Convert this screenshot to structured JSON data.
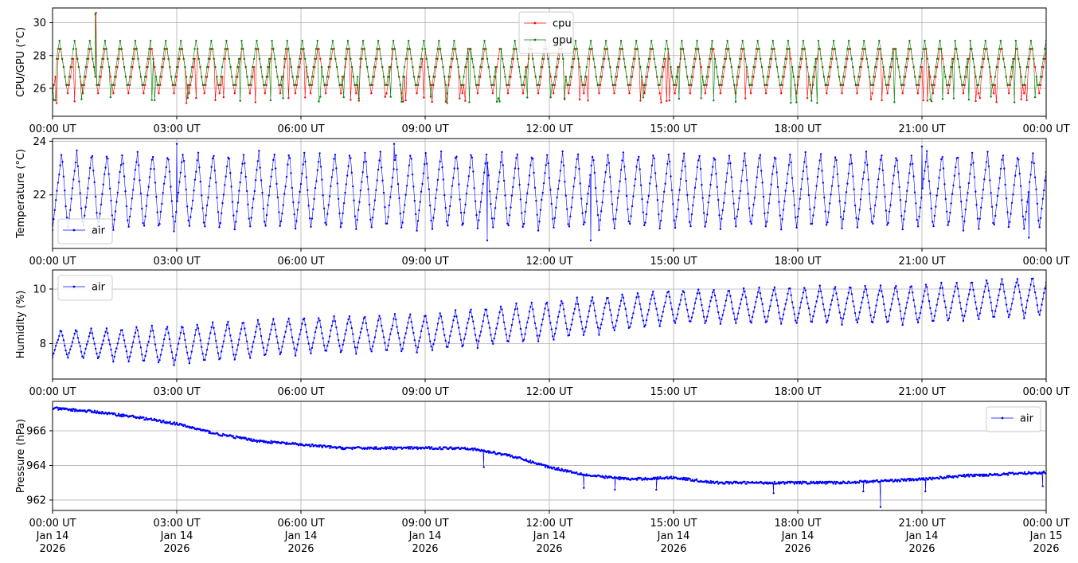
{
  "chart_data": [
    {
      "type": "line",
      "ylabel": "CPU/GPU (°C)",
      "ylim": [
        24.3,
        30.9
      ],
      "yticks": [
        26,
        28,
        30
      ],
      "xlim": [
        "2026-01-14T00:00Z",
        "2026-01-15T00:00Z"
      ],
      "x_tick_labels": [
        "00:00 UT",
        "03:00 UT",
        "06:00 UT",
        "09:00 UT",
        "12:00 UT",
        "15:00 UT",
        "18:00 UT",
        "21:00 UT",
        "00:00 UT"
      ],
      "grid": true,
      "legend": "top-center",
      "series": [
        {
          "name": "cpu",
          "color": "#ff0000",
          "pattern": "oscillating between ~25.7 and ~28.9 °C with ~22 min period",
          "min": 24.6,
          "max": 30.6
        },
        {
          "name": "gpu",
          "color": "#008000",
          "pattern": "oscillating between ~25.7 and ~28.9 °C with ~22 min period",
          "min": 24.6,
          "max": 30.5
        }
      ]
    },
    {
      "type": "line",
      "ylabel": "Temperature (°C)",
      "ylim": [
        20.0,
        24.1
      ],
      "yticks": [
        22,
        24
      ],
      "xlim": [
        "2026-01-14T00:00Z",
        "2026-01-15T00:00Z"
      ],
      "x_tick_labels": [
        "00:00 UT",
        "03:00 UT",
        "06:00 UT",
        "09:00 UT",
        "12:00 UT",
        "15:00 UT",
        "18:00 UT",
        "21:00 UT",
        "00:00 UT"
      ],
      "grid": true,
      "legend": "bottom-left",
      "series": [
        {
          "name": "air",
          "color": "#0000ff",
          "pattern": "sawtooth oscillation about 22 °C, range ~20.6 to ~23.6 °C, ~22 min period",
          "peaks": [
            [
              "03:00",
              23.9
            ],
            [
              "08:15",
              23.9
            ],
            [
              "21:00",
              23.8
            ]
          ],
          "troughs": [
            [
              "10:30",
              20.3
            ],
            [
              "13:00",
              20.3
            ],
            [
              "23:35",
              20.4
            ]
          ]
        }
      ]
    },
    {
      "type": "line",
      "ylabel": "Humidity (%)",
      "ylim": [
        6.7,
        10.7
      ],
      "yticks": [
        8,
        10
      ],
      "xlim": [
        "2026-01-14T00:00Z",
        "2026-01-15T00:00Z"
      ],
      "x_tick_labels": [
        "00:00 UT",
        "03:00 UT",
        "06:00 UT",
        "09:00 UT",
        "12:00 UT",
        "15:00 UT",
        "18:00 UT",
        "21:00 UT",
        "00:00 UT"
      ],
      "grid": true,
      "legend": "top-left",
      "series": [
        {
          "name": "air",
          "color": "#0000ff",
          "pattern": "oscillation with rising baseline",
          "envelope": [
            [
              "00:00",
              7.5,
              8.5
            ],
            [
              "03:00",
              7.2,
              8.7
            ],
            [
              "06:00",
              7.6,
              9.0
            ],
            [
              "09:00",
              7.7,
              9.1
            ],
            [
              "12:00",
              8.1,
              9.6
            ],
            [
              "15:00",
              8.7,
              10.0
            ],
            [
              "18:00",
              8.7,
              10.1
            ],
            [
              "21:00",
              8.7,
              10.2
            ],
            [
              "24:00",
              9.0,
              10.5
            ]
          ]
        }
      ]
    },
    {
      "type": "line",
      "ylabel": "Pressure (hPa)",
      "ylim": [
        961.4,
        967.7
      ],
      "yticks": [
        962,
        964,
        966
      ],
      "xlim": [
        "2026-01-14T00:00Z",
        "2026-01-15T00:00Z"
      ],
      "x_tick_labels": [
        "00:00 UT\nJan 14\n2026",
        "03:00 UT\nJan 14\n2026",
        "06:00 UT\nJan 14\n2026",
        "09:00 UT\nJan 14\n2026",
        "12:00 UT\nJan 14\n2026",
        "15:00 UT\nJan 14\n2026",
        "18:00 UT\nJan 14\n2026",
        "21:00 UT\nJan 14\n2026",
        "00:00 UT\nJan 15\n2026"
      ],
      "grid": true,
      "legend": "top-right",
      "series": [
        {
          "name": "air",
          "color": "#0000ff",
          "points": [
            [
              "00:00",
              967.3
            ],
            [
              "01:00",
              967.1
            ],
            [
              "02:00",
              966.8
            ],
            [
              "03:00",
              966.4
            ],
            [
              "04:00",
              965.8
            ],
            [
              "05:00",
              965.4
            ],
            [
              "06:00",
              965.2
            ],
            [
              "07:00",
              965.0
            ],
            [
              "08:00",
              965.0
            ],
            [
              "09:00",
              965.0
            ],
            [
              "10:00",
              965.0
            ],
            [
              "11:00",
              964.6
            ],
            [
              "12:00",
              963.9
            ],
            [
              "13:00",
              963.4
            ],
            [
              "14:00",
              963.2
            ],
            [
              "15:00",
              963.3
            ],
            [
              "16:00",
              963.0
            ],
            [
              "17:00",
              963.0
            ],
            [
              "18:00",
              963.0
            ],
            [
              "19:00",
              963.0
            ],
            [
              "20:00",
              963.1
            ],
            [
              "21:00",
              963.2
            ],
            [
              "22:00",
              963.4
            ],
            [
              "23:00",
              963.5
            ],
            [
              "24:00",
              963.6
            ]
          ],
          "dips": [
            [
              "10:25",
              963.9
            ],
            [
              "12:50",
              962.7
            ],
            [
              "13:35",
              962.6
            ],
            [
              "14:35",
              962.6
            ],
            [
              "17:25",
              962.4
            ],
            [
              "19:35",
              962.5
            ],
            [
              "20:00",
              961.6
            ],
            [
              "21:05",
              962.5
            ],
            [
              "23:55",
              962.8
            ]
          ]
        }
      ]
    }
  ]
}
